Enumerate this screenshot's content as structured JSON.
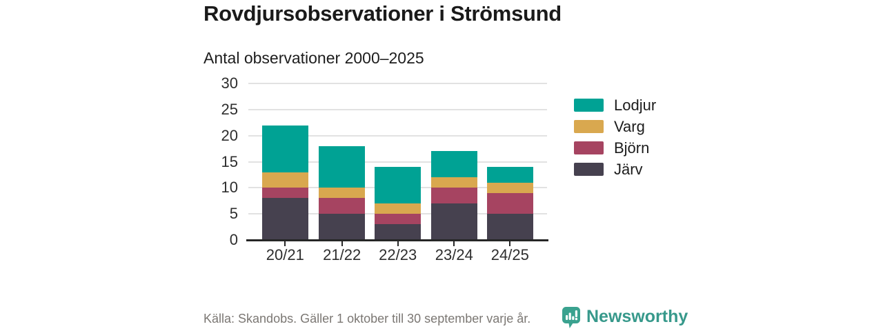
{
  "header": {
    "title": "Rovdjursobservationer i Strömsund",
    "subtitle": "Antal observationer 2000–2025"
  },
  "chart_data": {
    "type": "bar",
    "stacked": true,
    "title": "Rovdjursobservationer i Strömsund",
    "subtitle": "Antal observationer 2000–2025",
    "categories": [
      "20/21",
      "21/22",
      "22/23",
      "23/24",
      "24/25"
    ],
    "series": [
      {
        "name": "Lodjur",
        "color": "#00a294",
        "values": [
          9,
          8,
          7,
          5,
          3
        ]
      },
      {
        "name": "Varg",
        "color": "#d9a84f",
        "values": [
          3,
          2,
          2,
          2,
          2
        ]
      },
      {
        "name": "Björn",
        "color": "#a64461",
        "values": [
          2,
          3,
          2,
          3,
          4
        ]
      },
      {
        "name": "Järv",
        "color": "#46414f",
        "values": [
          8,
          5,
          3,
          7,
          5
        ]
      }
    ],
    "totals": [
      22,
      18,
      14,
      17,
      14
    ],
    "xlabel": "",
    "ylabel": "",
    "ylim": [
      0,
      30
    ],
    "yticks": [
      0,
      5,
      10,
      15,
      20,
      25,
      30
    ],
    "grid": true,
    "legend_position": "right",
    "gridline_color": "#e2e2e2",
    "axis_color": "#262626",
    "label_color": "#2e2e2e"
  },
  "footer": {
    "source": "Källa: Skandobs. Gäller 1 oktober till 30 september varje år.",
    "brand": "Newsworthy",
    "brand_color": "#37998b",
    "brand_icon_color": "#3aa28f"
  }
}
